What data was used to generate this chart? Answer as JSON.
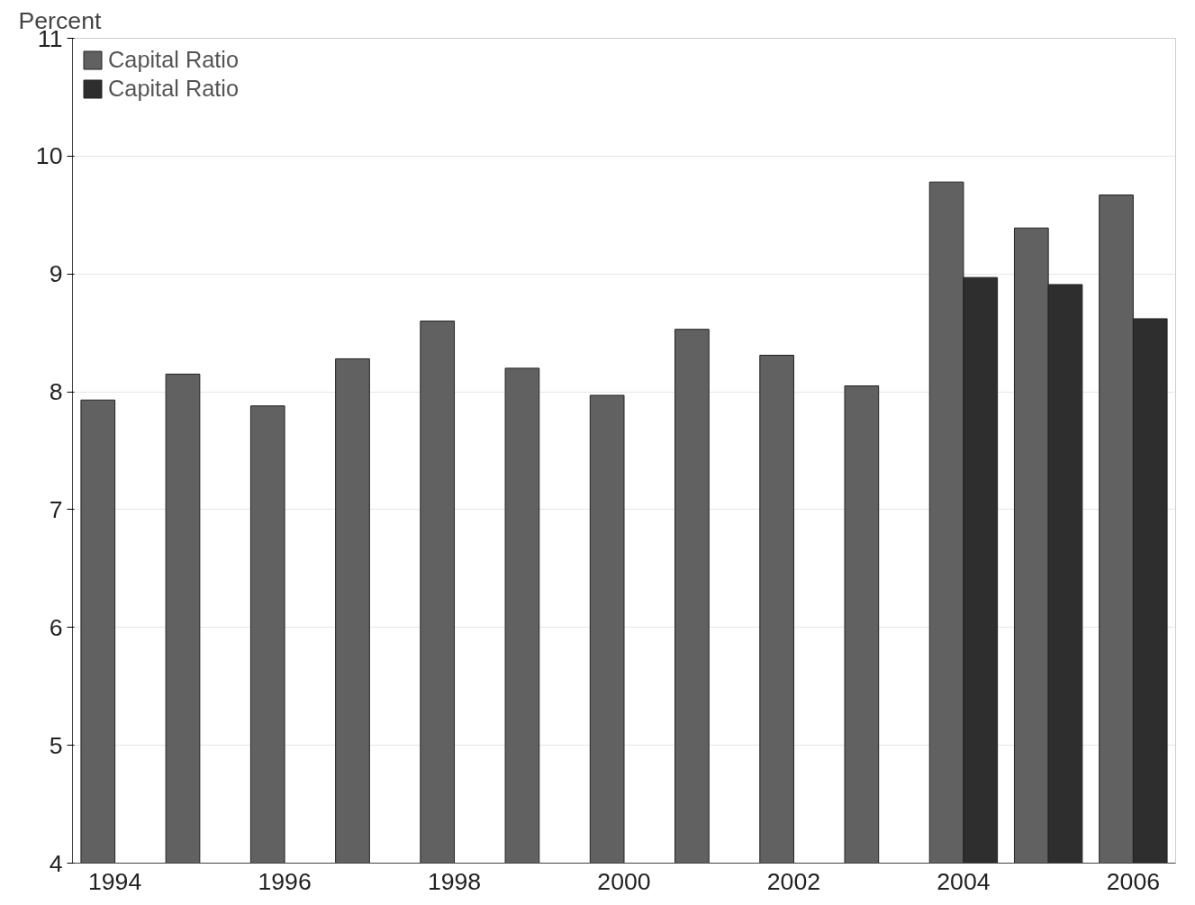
{
  "chart_data": {
    "type": "bar",
    "ylabel": "Percent",
    "categories": [
      "1994",
      null,
      "1996",
      null,
      "1998",
      null,
      "2000",
      null,
      "2002",
      null,
      "2004",
      null,
      "2006"
    ],
    "series": [
      {
        "name": "Capital Ratio",
        "color": "#616161",
        "values": [
          7.93,
          8.15,
          7.88,
          8.28,
          8.6,
          8.2,
          7.97,
          8.53,
          8.31,
          8.05,
          9.78,
          9.39,
          9.67
        ]
      },
      {
        "name": "Capital Ratio",
        "color": "#2e2e2e",
        "values": [
          null,
          null,
          null,
          null,
          null,
          null,
          null,
          null,
          null,
          null,
          8.97,
          8.91,
          8.62
        ]
      }
    ],
    "ylim": [
      4,
      11
    ],
    "yticks": [
      4,
      5,
      6,
      7,
      8,
      9,
      10,
      11
    ],
    "grid": "y",
    "legend": "top left"
  }
}
